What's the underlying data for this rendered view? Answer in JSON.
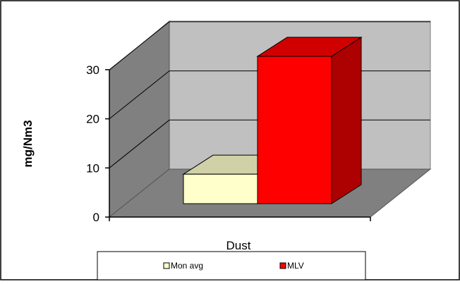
{
  "chart_data": {
    "type": "bar",
    "style": "3d-clustered",
    "title": "",
    "xlabel": "Dust",
    "ylabel": "mg/Nm3",
    "ylim": [
      0,
      35
    ],
    "yticks": [
      0,
      10,
      20,
      30
    ],
    "grid": true,
    "categories": [
      "Dust"
    ],
    "series": [
      {
        "name": "Mon avg",
        "values": [
          6
        ],
        "color": "#FFFFCC"
      },
      {
        "name": "MLV",
        "values": [
          30
        ],
        "color": "#FF0000"
      }
    ],
    "legend": {
      "position": "bottom"
    }
  }
}
